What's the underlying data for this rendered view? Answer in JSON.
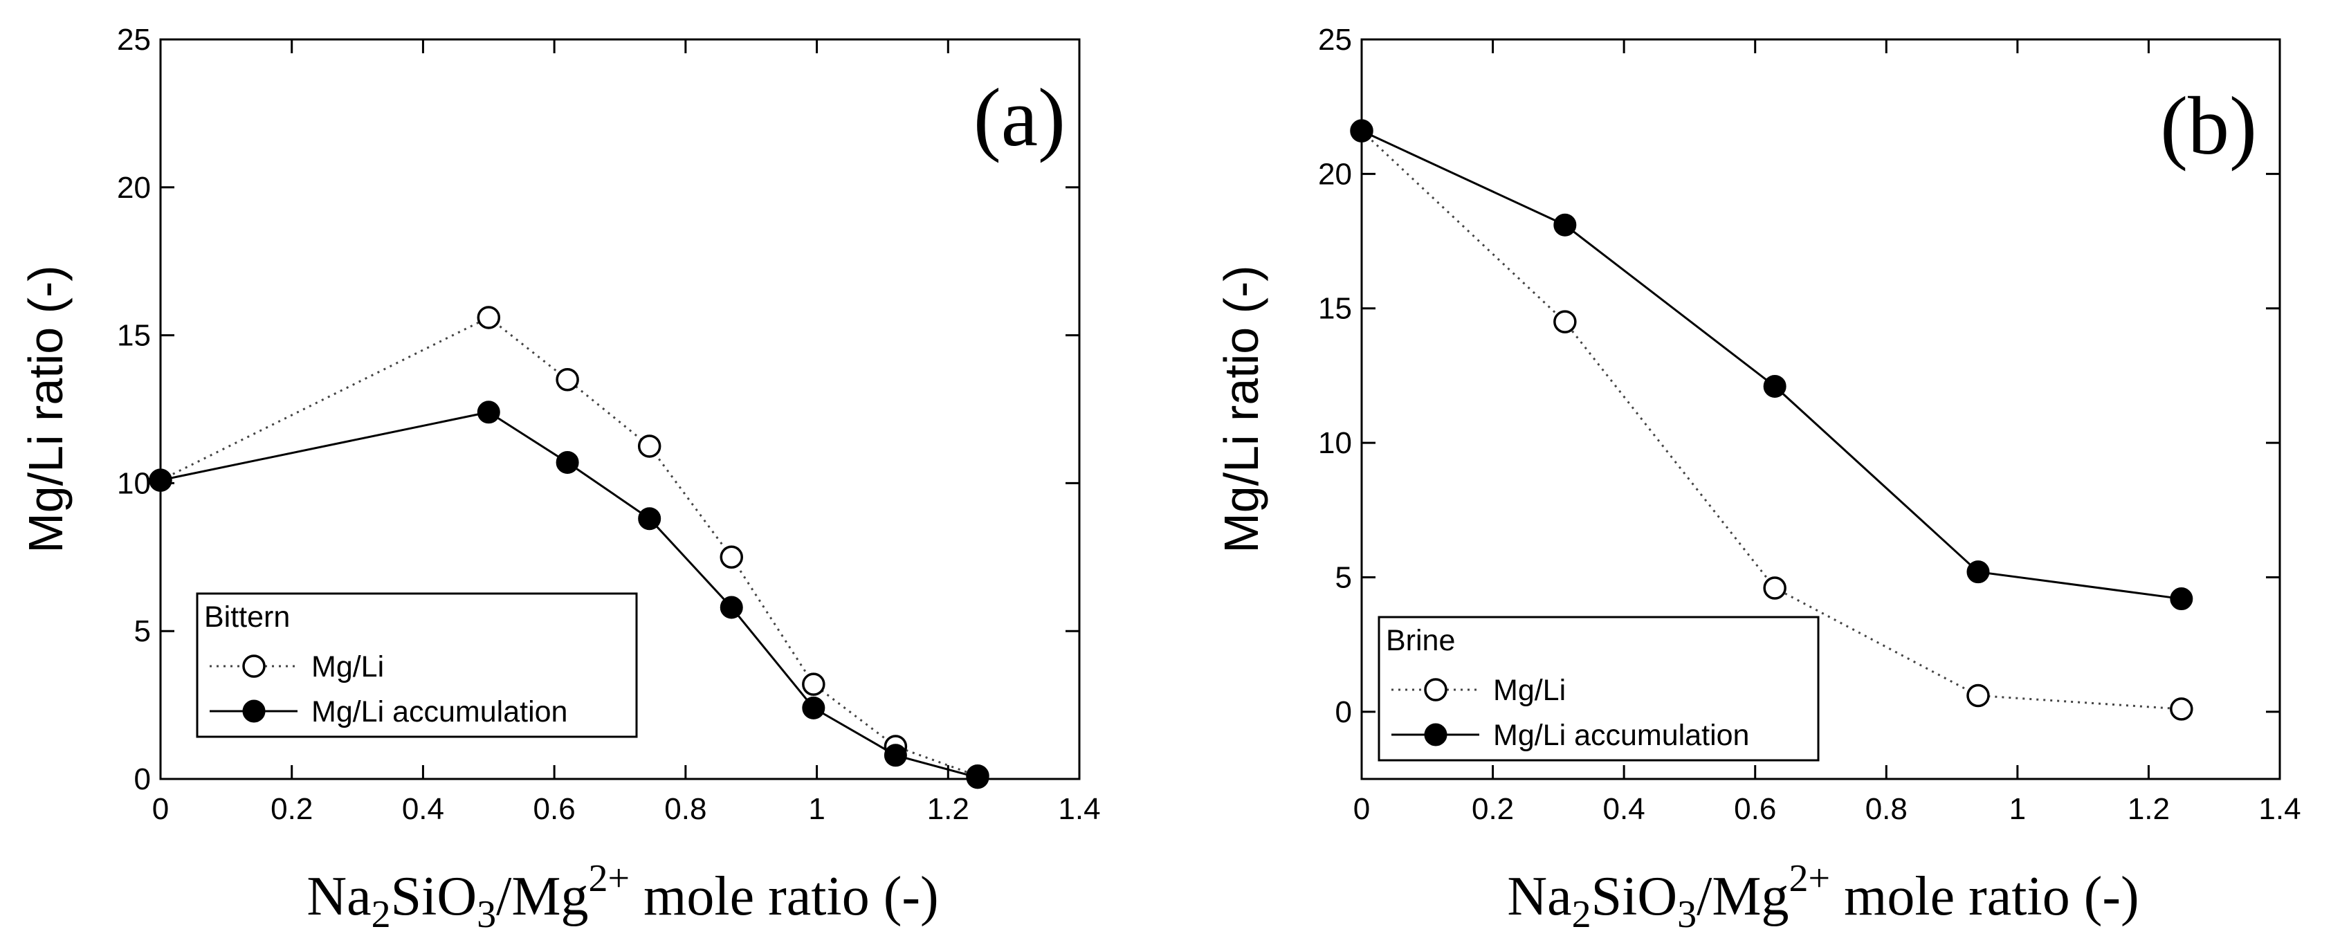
{
  "chart_data": [
    {
      "type": "line",
      "panel_label": "(a)",
      "ylabel": "Mg/Li ratio (-)",
      "xlabel": "Na2SiO3/Mg2+ mole ratio (-)",
      "xlabel_parts": {
        "pre": "Na",
        "sub1": "2",
        "mid": "SiO",
        "sub2": "3",
        "mg": "/Mg",
        "sup": "2+",
        "post": " mole ratio  (-)"
      },
      "xlim": [
        0,
        1.4
      ],
      "ylim": [
        0,
        25
      ],
      "x_ticks": [
        0,
        0.2,
        0.4,
        0.6,
        0.8,
        1,
        1.2,
        1.4
      ],
      "x_tick_labels": [
        "0",
        "0.2",
        "0.4",
        "0.6",
        "0.8",
        "1",
        "1.2",
        "1.4"
      ],
      "y_ticks": [
        0,
        5,
        10,
        15,
        20,
        25
      ],
      "y_tick_labels": [
        "0",
        "5",
        "10",
        "15",
        "20",
        "25"
      ],
      "legend": {
        "title": "Bittern",
        "position": "bottom-left"
      },
      "series": [
        {
          "name": "Mg/Li",
          "style": "dotted-open",
          "x": [
            0,
            0.5,
            0.62,
            0.745,
            0.87,
            0.995,
            1.12,
            1.245
          ],
          "values": [
            10.1,
            15.6,
            13.5,
            11.25,
            7.5,
            3.2,
            1.1,
            0.1
          ]
        },
        {
          "name": "Mg/Li accumulation",
          "style": "solid-filled",
          "x": [
            0,
            0.5,
            0.62,
            0.745,
            0.87,
            0.995,
            1.12,
            1.245
          ],
          "values": [
            10.1,
            12.4,
            10.7,
            8.8,
            5.8,
            2.4,
            0.8,
            0.05
          ]
        }
      ]
    },
    {
      "type": "line",
      "panel_label": "(b)",
      "ylabel": "Mg/Li ratio (-)",
      "xlabel": "Na2SiO3/Mg2+ mole ratio (-)",
      "xlabel_parts": {
        "pre": "Na",
        "sub1": "2",
        "mid": "SiO",
        "sub2": "3",
        "mg": "/Mg",
        "sup": "2+",
        "post": " mole ratio  (-)"
      },
      "xlim": [
        0,
        1.4
      ],
      "ylim": [
        -2.5,
        25
      ],
      "x_ticks": [
        0,
        0.2,
        0.4,
        0.6,
        0.8,
        1,
        1.2,
        1.4
      ],
      "x_tick_labels": [
        "0",
        "0.2",
        "0.4",
        "0.6",
        "0.8",
        "1",
        "1.2",
        "1.4"
      ],
      "y_ticks": [
        0,
        5,
        10,
        15,
        20,
        25
      ],
      "y_tick_labels": [
        "0",
        "5",
        "10",
        "15",
        "20",
        "25"
      ],
      "legend": {
        "title": "Brine",
        "position": "bottom-left"
      },
      "series": [
        {
          "name": "Mg/Li",
          "style": "dotted-open",
          "x": [
            0,
            0.31,
            0.63,
            0.94,
            1.25
          ],
          "values": [
            21.6,
            14.5,
            4.6,
            0.6,
            0.1
          ]
        },
        {
          "name": "Mg/Li accumulation",
          "style": "solid-filled",
          "x": [
            0,
            0.31,
            0.63,
            0.94,
            1.25
          ],
          "values": [
            21.6,
            18.1,
            12.1,
            5.2,
            4.2
          ]
        }
      ]
    }
  ]
}
